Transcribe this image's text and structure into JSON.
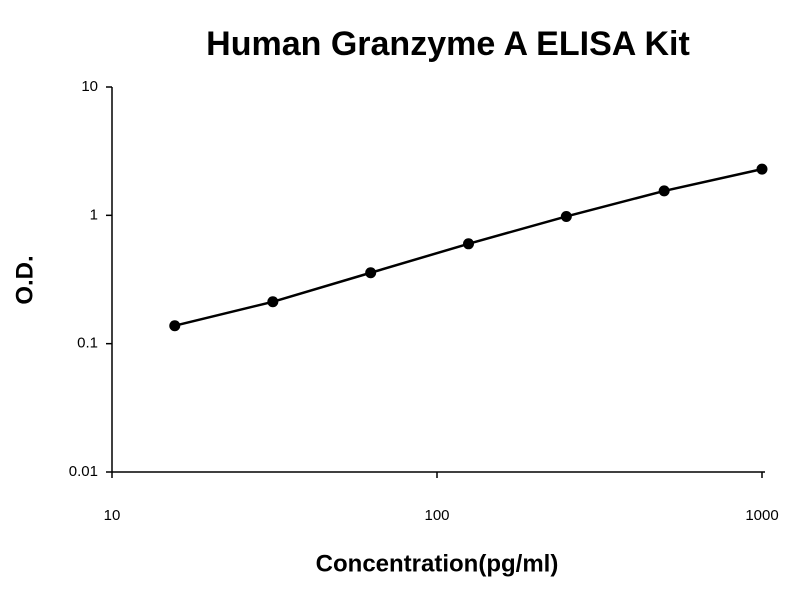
{
  "chart_data": {
    "type": "line",
    "title": "Human Granzyme A ELISA Kit",
    "x_label": "Concentration(pg/ml)",
    "y_label": "O.D.",
    "x": [
      15.6,
      31.25,
      62.5,
      125,
      250,
      500,
      1000
    ],
    "values": [
      0.138,
      0.212,
      0.357,
      0.6,
      0.98,
      1.55,
      2.29
    ],
    "color": "#000000",
    "xscale": "log",
    "yscale": "log",
    "xlim": [
      10,
      1000
    ],
    "ylim": [
      0.01,
      10
    ],
    "xticks": [
      10,
      100,
      1000
    ],
    "yticks": [
      0.01,
      0.1,
      1,
      10
    ],
    "grid": false
  }
}
